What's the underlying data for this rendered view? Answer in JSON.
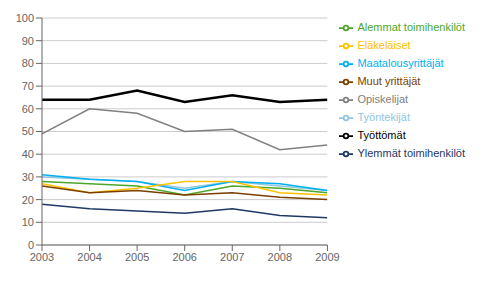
{
  "chart_data": {
    "type": "line",
    "x": [
      2003,
      2004,
      2005,
      2006,
      2007,
      2008,
      2009
    ],
    "series": [
      {
        "name": "Työttömät",
        "color": "#000000",
        "values": [
          64,
          64,
          68,
          63,
          66,
          63,
          64
        ]
      },
      {
        "name": "Opiskelijat",
        "color": "#808080",
        "values": [
          49,
          60,
          58,
          50,
          51,
          42,
          44
        ]
      },
      {
        "name": "Alemmat toimihenkilöt",
        "color": "#4ea72a",
        "values": [
          28,
          27,
          26,
          22,
          26,
          25,
          23
        ]
      },
      {
        "name": "Työntekijät",
        "color": "#92c5de",
        "values": [
          30,
          29,
          28,
          25,
          28,
          26,
          24
        ]
      },
      {
        "name": "Maatalousyrittäjät",
        "color": "#00b0f0",
        "values": [
          31,
          29,
          28,
          24,
          28,
          27,
          24
        ]
      },
      {
        "name": "Eläkeläiset",
        "color": "#ffc000",
        "values": [
          27,
          23,
          25,
          28,
          28,
          23,
          22
        ]
      },
      {
        "name": "Muut yrittäjät",
        "color": "#7b3f00",
        "values": [
          26,
          23,
          24,
          22,
          23,
          21,
          20
        ]
      },
      {
        "name": "Ylemmät toimihenkilöt",
        "color": "#1f3864",
        "values": [
          18,
          16,
          15,
          14,
          16,
          13,
          12
        ]
      }
    ],
    "xlim": [
      2003,
      2009
    ],
    "xticks": [
      2003,
      2004,
      2005,
      2006,
      2007,
      2008,
      2009
    ],
    "ylim": [
      0,
      100
    ],
    "yticks": [
      0,
      10,
      20,
      30,
      40,
      50,
      60,
      70,
      80,
      90,
      100
    ],
    "grid": true,
    "legend": "right"
  }
}
